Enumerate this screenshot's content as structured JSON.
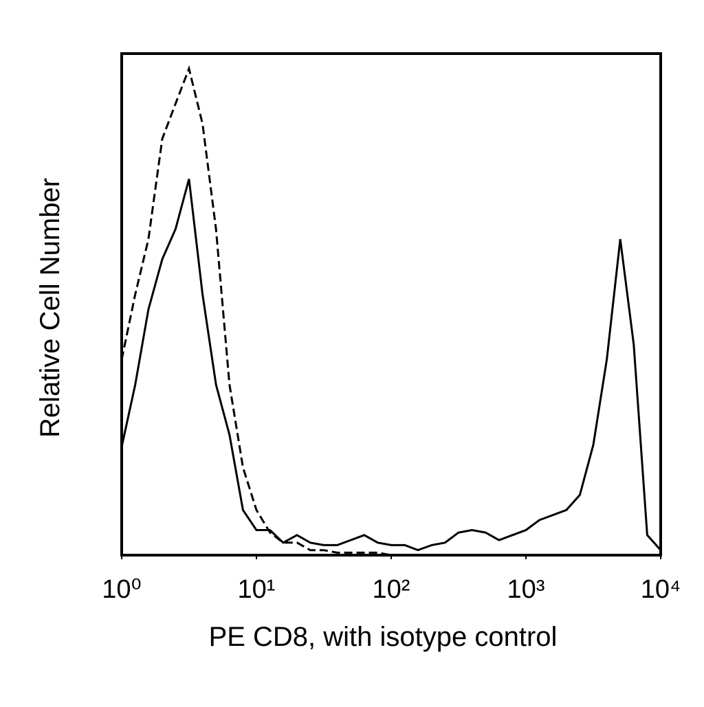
{
  "chart_data": {
    "type": "line",
    "x_label": "PE CD8, with isotype control",
    "y_label": "Relative Cell Number",
    "x_scale": "log",
    "xlim": [
      1,
      10000
    ],
    "xticks": [
      {
        "value": 1,
        "label": "10⁰"
      },
      {
        "value": 10,
        "label": "10¹"
      },
      {
        "value": 100,
        "label": "10²"
      },
      {
        "value": 1000,
        "label": "10³"
      },
      {
        "value": 10000,
        "label": "10⁴"
      }
    ],
    "ylim": [
      0,
      100
    ],
    "x": [
      1,
      1.26,
      1.58,
      2,
      2.51,
      3.16,
      3.98,
      5.01,
      6.31,
      7.94,
      10,
      12.6,
      15.8,
      20,
      25.1,
      31.6,
      39.8,
      50.1,
      63.1,
      79.4,
      100,
      126,
      158,
      200,
      251,
      316,
      398,
      501,
      631,
      794,
      1000,
      1259,
      1585,
      1995,
      2512,
      3162,
      3981,
      5012,
      6310,
      7943,
      10000
    ],
    "series": [
      {
        "style": "solid",
        "color": "#000000",
        "values": [
          21.6,
          34,
          49,
          59,
          65,
          75,
          52,
          34,
          24,
          9,
          5,
          5,
          2.5,
          4,
          2.5,
          2,
          2,
          3,
          4,
          2.5,
          2,
          2,
          1,
          2,
          2.5,
          4.5,
          5,
          4.5,
          3,
          4,
          5,
          7,
          8,
          9,
          12,
          22,
          39,
          63,
          42,
          4,
          1
        ]
      },
      {
        "style": "dashed",
        "color": "#000000",
        "values": [
          39,
          52,
          63,
          83,
          90,
          97,
          86,
          65,
          34,
          17.5,
          9,
          4.5,
          2.5,
          2.5,
          1,
          1,
          0.5,
          0.5,
          0.5,
          0.5,
          0,
          0,
          0,
          0,
          0,
          0,
          0,
          0,
          0,
          0,
          0,
          0,
          0,
          0,
          0,
          0,
          0,
          0,
          0,
          0,
          0
        ]
      }
    ]
  }
}
